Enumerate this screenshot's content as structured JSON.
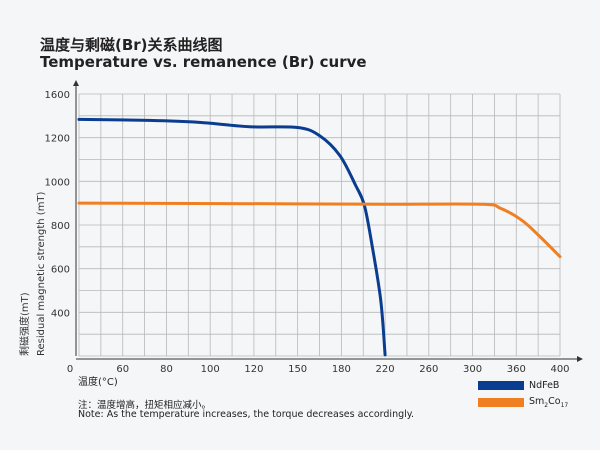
{
  "title_cn": "温度与剩磁(Br)关系曲线图",
  "title_en": "Temperature vs. remanence (Br) curve",
  "note_cn": "注：温度增高，扭矩相应减小。",
  "note_en": "Note: As the temperature increases, the torque decreases accordingly.",
  "chart_data": {
    "type": "line",
    "title": "Temperature vs. remanence (Br) curve",
    "xlabel": "温度(°C)",
    "ylabel_cn": "剩磁强度(mT)",
    "ylabel_en": "Residual magnetic strength (mT)",
    "x_tick_labels": [
      "0",
      "60",
      "80",
      "100",
      "120",
      "150",
      "180",
      "220",
      "260",
      "300",
      "360",
      "400"
    ],
    "y_tick_labels": [
      "1600",
      "1200",
      "1000",
      "800",
      "600",
      "400"
    ],
    "xlim": [
      0,
      400
    ],
    "grid": true,
    "legend_position": "bottom-right",
    "series": [
      {
        "name": "NdFeB",
        "color": "#0a3d8f",
        "points": [
          [
            0,
            1367
          ],
          [
            72,
            1358
          ],
          [
            95,
            1340
          ],
          [
            118,
            1300
          ],
          [
            150,
            1293
          ],
          [
            165,
            1219
          ],
          [
            179,
            1118
          ],
          [
            193,
            982
          ],
          [
            201,
            891
          ],
          [
            208,
            709
          ],
          [
            216,
            456
          ],
          [
            220,
            205
          ]
        ]
      },
      {
        "name": "Sm2Co17",
        "name_main": "Sm",
        "sub1": "2",
        "mid": "Co",
        "sub2": "17",
        "color": "#f07f22",
        "points": [
          [
            0,
            900
          ],
          [
            150,
            897
          ],
          [
            220,
            895
          ],
          [
            313,
            895
          ],
          [
            338,
            877
          ],
          [
            365,
            822
          ],
          [
            382,
            745
          ],
          [
            400,
            655
          ]
        ]
      }
    ]
  }
}
